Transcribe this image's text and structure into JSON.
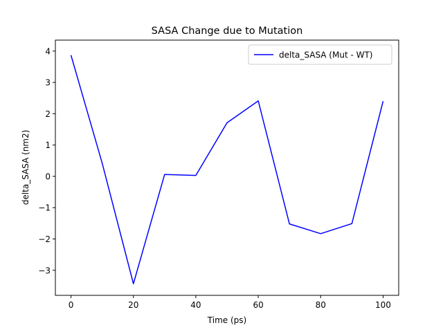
{
  "chart_data": {
    "type": "line",
    "title": "SASA Change due to Mutation",
    "xlabel": "Time (ps)",
    "ylabel": "delta_SASA (nm2)",
    "xlim": [
      -5,
      105
    ],
    "ylim": [
      -3.8,
      4.35
    ],
    "xticks": [
      0,
      20,
      40,
      60,
      80,
      100
    ],
    "xtick_labels": [
      "0",
      "20",
      "40",
      "60",
      "80",
      "100"
    ],
    "yticks": [
      -3,
      -2,
      -1,
      0,
      1,
      2,
      3,
      4
    ],
    "ytick_labels": [
      "−3",
      "−2",
      "−1",
      "0",
      "1",
      "2",
      "3",
      "4"
    ],
    "grid": false,
    "legend_position": "top-right",
    "series": [
      {
        "name": "delta_SASA (Mut - WT)",
        "color": "#0000ff",
        "x": [
          0,
          10,
          20,
          30,
          40,
          50,
          60,
          70,
          80,
          90,
          100
        ],
        "y": [
          3.87,
          0.42,
          -3.43,
          0.06,
          0.03,
          1.71,
          2.41,
          -1.52,
          -1.83,
          -1.51,
          2.4
        ]
      }
    ]
  }
}
